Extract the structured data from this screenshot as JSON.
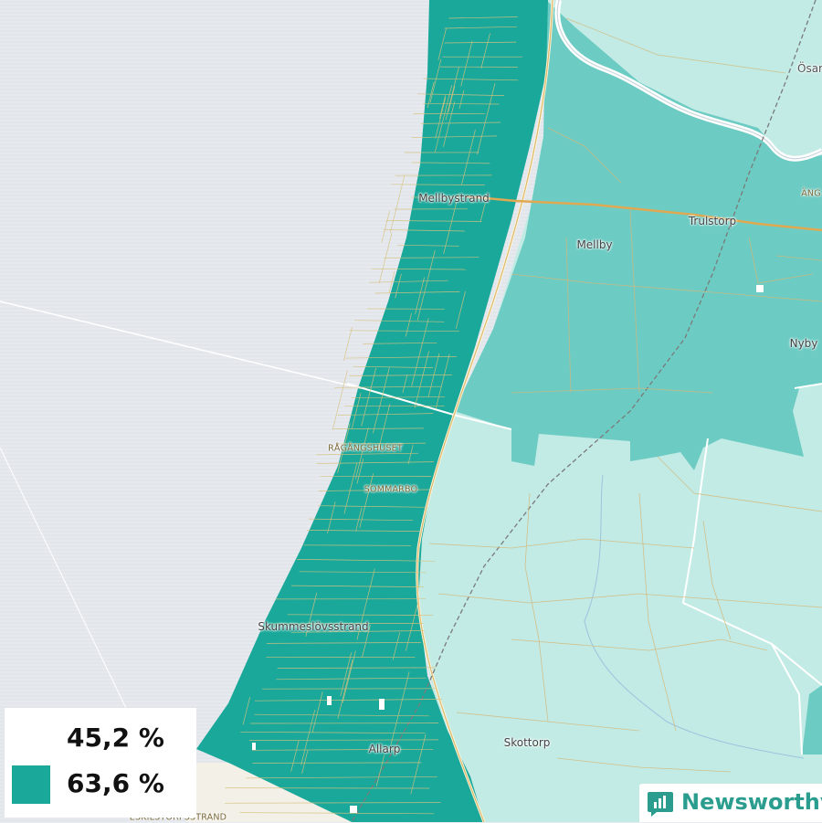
{
  "map": {
    "places": [
      {
        "id": "osar",
        "label": "Ösar"
      },
      {
        "id": "mellbystrand",
        "label": "Mellbystrand"
      },
      {
        "id": "ang",
        "label": "ÄNG"
      },
      {
        "id": "trulstorp",
        "label": "Trulstorp"
      },
      {
        "id": "mellby",
        "label": "Mellby"
      },
      {
        "id": "nyby",
        "label": "Nyby"
      },
      {
        "id": "ragangshuset",
        "label": "RÅGÅNGSHUSET"
      },
      {
        "id": "sommarbo",
        "label": "SOMMARBO"
      },
      {
        "id": "skummeslovsstrand",
        "label": "Skummeslövsstrand"
      },
      {
        "id": "allarp",
        "label": "Allarp"
      },
      {
        "id": "skottorp",
        "label": "Skottorp"
      },
      {
        "id": "eskilstorpsstrand",
        "label": "ESKILSTORPSSTRAND"
      }
    ],
    "colors": {
      "sea": "#e6e9ee",
      "coastal_dark": "#1aa89a",
      "mid": "#6ccbc3",
      "light": "#c2ebe5",
      "roads": "#d4b87a"
    }
  },
  "legend": {
    "items": [
      {
        "label": "45,2 %",
        "color": "#ffffff"
      },
      {
        "label": "63,6 %",
        "color": "#1aa89a"
      }
    ]
  },
  "brand": {
    "name": "Newsworthy",
    "icon": "bar-chart-icon"
  }
}
